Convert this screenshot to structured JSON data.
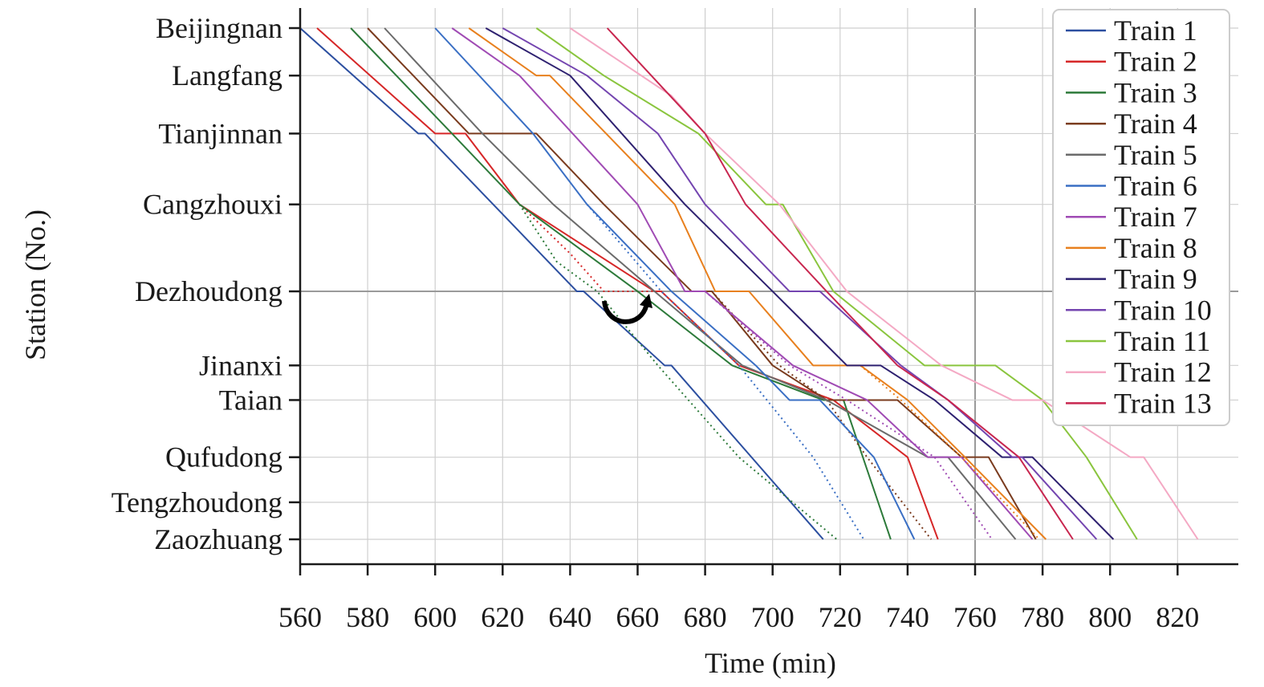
{
  "chart_data": {
    "type": "line",
    "title": "",
    "xlabel": "Time (min)",
    "ylabel": "Station (No.)",
    "xlim": [
      560,
      838
    ],
    "x_ticks": [
      560,
      580,
      600,
      620,
      640,
      660,
      680,
      700,
      720,
      740,
      760,
      780,
      800,
      820
    ],
    "stations": [
      "Beijingnan",
      "Langfang",
      "Tianjinnan",
      "Cangzhouxi",
      "Dezhoudong",
      "Jinanxi",
      "Taian",
      "Qufudong",
      "Tengzhoudong",
      "Zaozhuang"
    ],
    "station_km": [
      0,
      59,
      131,
      219,
      327,
      419,
      462,
      533,
      589,
      635
    ],
    "grid": true,
    "highlighted_x": 760,
    "highlighted_station": "Dezhoudong",
    "legend_position": "top-right",
    "annotation": "curved arrow at Dezhoudong between 650 and 665 min",
    "series": [
      {
        "name": "Train 1",
        "color": "#2c4fa0",
        "points": [
          [
            560,
            0
          ],
          [
            595,
            131
          ],
          [
            597,
            131
          ],
          [
            642,
            327
          ],
          [
            644,
            327
          ],
          [
            668,
            419
          ],
          [
            670,
            419
          ],
          [
            715,
            635
          ]
        ],
        "dotted": []
      },
      {
        "name": "Train 2",
        "color": "#d62728",
        "points": [
          [
            565,
            0
          ],
          [
            600,
            131
          ],
          [
            609,
            131
          ],
          [
            625,
            219
          ],
          [
            665,
            327
          ],
          [
            667,
            327
          ],
          [
            690,
            419
          ],
          [
            718,
            462
          ],
          [
            740,
            533
          ],
          [
            749,
            635
          ]
        ],
        "dotted": [
          [
            [
              625,
              219
            ],
            [
              640,
              280
            ],
            [
              650,
              327
            ],
            [
              667,
              327
            ]
          ]
        ]
      },
      {
        "name": "Train 3",
        "color": "#2d7a3a",
        "points": [
          [
            575,
            0
          ],
          [
            605,
            131
          ],
          [
            625,
            219
          ],
          [
            660,
            327
          ],
          [
            688,
            419
          ],
          [
            715,
            462
          ],
          [
            721,
            462
          ],
          [
            735,
            635
          ]
        ],
        "dotted": [
          [
            [
              625,
              219
            ],
            [
              636,
              290
            ],
            [
              648,
              327
            ],
            [
              666,
              419
            ],
            [
              690,
              533
            ],
            [
              719,
              635
            ]
          ]
        ]
      },
      {
        "name": "Train 4",
        "color": "#7a3b1e",
        "points": [
          [
            580,
            0
          ],
          [
            610,
            131
          ],
          [
            630,
            131
          ],
          [
            650,
            219
          ],
          [
            676,
            327
          ],
          [
            682,
            327
          ],
          [
            700,
            419
          ],
          [
            716,
            462
          ],
          [
            737,
            462
          ],
          [
            756,
            533
          ],
          [
            764,
            533
          ],
          [
            778,
            635
          ]
        ],
        "dotted": [
          [
            [
              682,
              327
            ],
            [
              702,
              419
            ],
            [
              716,
              462
            ],
            [
              728,
              533
            ],
            [
              747,
              635
            ]
          ]
        ]
      },
      {
        "name": "Train 5",
        "color": "#6b6b6b",
        "points": [
          [
            585,
            0
          ],
          [
            614,
            131
          ],
          [
            635,
            219
          ],
          [
            665,
            327
          ],
          [
            691,
            419
          ],
          [
            716,
            462
          ],
          [
            746,
            533
          ],
          [
            752,
            533
          ],
          [
            772,
            635
          ]
        ],
        "dotted": []
      },
      {
        "name": "Train 6",
        "color": "#3a6fc4",
        "points": [
          [
            600,
            0
          ],
          [
            629,
            131
          ],
          [
            645,
            219
          ],
          [
            670,
            327
          ],
          [
            695,
            419
          ],
          [
            705,
            462
          ],
          [
            714,
            462
          ],
          [
            730,
            533
          ],
          [
            742,
            635
          ]
        ],
        "dotted": [
          [
            [
              645,
              219
            ],
            [
              667,
              327
            ],
            [
              690,
              419
            ],
            [
              712,
              533
            ],
            [
              727,
              635
            ]
          ]
        ]
      },
      {
        "name": "Train 7",
        "color": "#a04bb4",
        "points": [
          [
            605,
            0
          ],
          [
            625,
            59
          ],
          [
            660,
            219
          ],
          [
            674,
            327
          ],
          [
            680,
            327
          ],
          [
            706,
            419
          ],
          [
            728,
            462
          ],
          [
            746,
            533
          ],
          [
            756,
            533
          ],
          [
            777,
            635
          ]
        ],
        "dotted": [
          [
            [
              680,
              327
            ],
            [
              705,
              419
            ],
            [
              722,
              462
            ],
            [
              748,
              533
            ],
            [
              765,
              635
            ]
          ]
        ]
      },
      {
        "name": "Train 8",
        "color": "#e8801e",
        "points": [
          [
            610,
            0
          ],
          [
            630,
            59
          ],
          [
            634,
            59
          ],
          [
            671,
            219
          ],
          [
            683,
            327
          ],
          [
            693,
            327
          ],
          [
            712,
            419
          ],
          [
            726,
            419
          ],
          [
            740,
            462
          ],
          [
            757,
            533
          ],
          [
            781,
            635
          ]
        ],
        "dotted": [
          [
            [
              726,
              419
            ],
            [
              738,
              462
            ],
            [
              756,
              533
            ],
            [
              779,
              635
            ]
          ]
        ]
      },
      {
        "name": "Train 9",
        "color": "#2e2170",
        "points": [
          [
            615,
            0
          ],
          [
            640,
            59
          ],
          [
            674,
            219
          ],
          [
            700,
            327
          ],
          [
            722,
            419
          ],
          [
            732,
            419
          ],
          [
            748,
            462
          ],
          [
            768,
            533
          ],
          [
            777,
            533
          ],
          [
            801,
            635
          ]
        ],
        "dotted": []
      },
      {
        "name": "Train 10",
        "color": "#7445b0",
        "points": [
          [
            620,
            0
          ],
          [
            645,
            59
          ],
          [
            666,
            131
          ],
          [
            680,
            219
          ],
          [
            705,
            327
          ],
          [
            714,
            327
          ],
          [
            738,
            419
          ],
          [
            752,
            462
          ],
          [
            771,
            533
          ],
          [
            774,
            533
          ],
          [
            796,
            635
          ]
        ],
        "dotted": []
      },
      {
        "name": "Train 11",
        "color": "#8ac53e",
        "points": [
          [
            630,
            0
          ],
          [
            650,
            59
          ],
          [
            678,
            131
          ],
          [
            698,
            219
          ],
          [
            703,
            219
          ],
          [
            718,
            327
          ],
          [
            745,
            419
          ],
          [
            766,
            419
          ],
          [
            780,
            462
          ],
          [
            793,
            533
          ],
          [
            808,
            635
          ]
        ],
        "dotted": []
      },
      {
        "name": "Train 12",
        "color": "#f4a9c4",
        "points": [
          [
            640,
            0
          ],
          [
            670,
            84
          ],
          [
            680,
            131
          ],
          [
            702,
            219
          ],
          [
            722,
            327
          ],
          [
            750,
            419
          ],
          [
            771,
            462
          ],
          [
            780,
            462
          ],
          [
            806,
            533
          ],
          [
            810,
            533
          ],
          [
            826,
            635
          ]
        ],
        "dotted": []
      },
      {
        "name": "Train 13",
        "color": "#c8264f",
        "points": [
          [
            651,
            0
          ],
          [
            680,
            131
          ],
          [
            692,
            219
          ],
          [
            716,
            327
          ],
          [
            737,
            419
          ],
          [
            752,
            462
          ],
          [
            773,
            533
          ],
          [
            789,
            635
          ]
        ],
        "dotted": []
      }
    ]
  }
}
